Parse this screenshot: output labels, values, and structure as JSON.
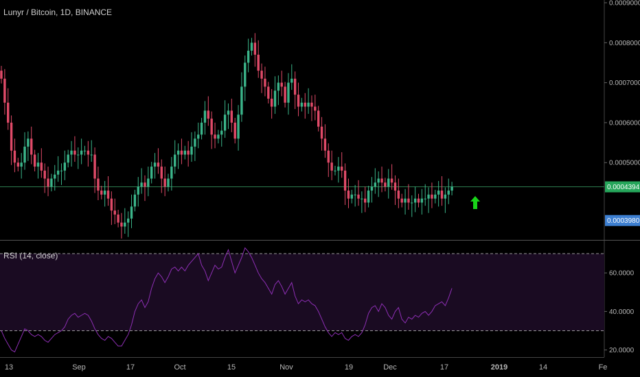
{
  "header": {
    "title": "Lunyr / Bitcoin, 1D, BINANCE"
  },
  "rsi_panel": {
    "title": "RSI (14, close)"
  },
  "colors": {
    "up": "#3bb58a",
    "down": "#e04a68",
    "price_line": "#2e7d4f",
    "last_price_bg": "#26a65b",
    "secondary_price_bg": "#3d7fd1",
    "arrow": "#19d419",
    "rsi_line": "#8e2fb5",
    "rsi_band": "#1a0b22"
  },
  "chart_data": [
    {
      "type": "candlestick",
      "title": "Lunyr / Bitcoin, 1D, BINANCE",
      "price_axis": {
        "ylim": [
          0.00031,
          0.0009
        ],
        "ticks": [
          "0.0005000",
          "0.0006000",
          "0.0007000",
          "0.0008000",
          "0.0009000"
        ]
      },
      "markers": [
        {
          "label": "0.0004394",
          "value": 0.0004394,
          "style": "current"
        },
        {
          "label": "0.0003980",
          "value": 0.000398,
          "style": "secondary"
        }
      ],
      "horizontal_line": 0.0004394,
      "annotation": "up-arrow-icon",
      "closes": [
        0.00071,
        0.00065,
        0.0006,
        0.00053,
        0.0005,
        0.00049,
        0.0005,
        0.00054,
        0.00056,
        0.00052,
        0.00049,
        0.0005,
        0.00048,
        0.00046,
        0.00044,
        0.00046,
        0.00047,
        0.00048,
        0.00048,
        0.0005,
        0.00052,
        0.00053,
        0.00052,
        0.00052,
        0.00053,
        0.00053,
        0.00052,
        0.00052,
        0.00046,
        0.00043,
        0.00042,
        0.00043,
        0.00041,
        0.00038,
        0.00037,
        0.00035,
        0.00034,
        0.00035,
        0.00036,
        0.00039,
        0.00042,
        0.00044,
        0.00045,
        0.00044,
        0.00046,
        0.00049,
        0.0005,
        0.00049,
        0.00046,
        0.00044,
        0.00046,
        0.00049,
        0.00052,
        0.00053,
        0.00052,
        0.00053,
        0.00052,
        0.00054,
        0.00056,
        0.00057,
        0.0006,
        0.00063,
        0.00061,
        0.00057,
        0.00056,
        0.00057,
        0.00058,
        0.00062,
        0.00063,
        0.0006,
        0.00056,
        0.00062,
        0.00069,
        0.00075,
        0.00078,
        0.0008,
        0.00077,
        0.00073,
        0.00071,
        0.00069,
        0.00066,
        0.00064,
        0.00068,
        0.0007,
        0.00069,
        0.00065,
        0.0007,
        0.00071,
        0.00067,
        0.00064,
        0.00065,
        0.00064,
        0.00065,
        0.00064,
        0.00063,
        0.00059,
        0.00056,
        0.00053,
        0.0005,
        0.00048,
        0.00048,
        0.00049,
        0.00048,
        0.00043,
        0.00041,
        0.00042,
        0.00042,
        0.00041,
        0.00041,
        0.0004,
        0.00043,
        0.00044,
        0.00045,
        0.00046,
        0.00045,
        0.00044,
        0.00046,
        0.00045,
        0.00043,
        0.00041,
        0.0004,
        0.00041,
        0.0004,
        0.0004,
        0.00041,
        0.0004,
        0.00041,
        0.00041,
        0.00042,
        0.00041,
        0.00042,
        0.00043,
        0.00041,
        0.00042,
        0.00043,
        0.00044
      ]
    },
    {
      "type": "line",
      "title": "RSI (14, close)",
      "ylim": [
        17,
        75
      ],
      "ticks": [
        "20.0000",
        "40.0000",
        "60.0000"
      ],
      "bands": [
        30,
        70
      ],
      "values": [
        30,
        26,
        23,
        20,
        19,
        23,
        27,
        31,
        30,
        28,
        27,
        28,
        27,
        25,
        24,
        26,
        28,
        29,
        30,
        32,
        36,
        38,
        39,
        37,
        38,
        39,
        38,
        35,
        31,
        28,
        26,
        25,
        27,
        26,
        24,
        22,
        22,
        25,
        28,
        33,
        40,
        44,
        46,
        42,
        45,
        52,
        57,
        60,
        58,
        55,
        58,
        62,
        63,
        61,
        63,
        61,
        64,
        66,
        68,
        70,
        64,
        61,
        56,
        60,
        64,
        62,
        63,
        68,
        72,
        66,
        60,
        64,
        68,
        73,
        71,
        68,
        64,
        60,
        57,
        55,
        52,
        49,
        54,
        56,
        53,
        49,
        52,
        55,
        48,
        44,
        46,
        45,
        46,
        44,
        43,
        40,
        36,
        32,
        29,
        27,
        29,
        28,
        29,
        26,
        25,
        27,
        28,
        27,
        29,
        33,
        39,
        42,
        43,
        40,
        44,
        42,
        38,
        36,
        40,
        42,
        36,
        34,
        37,
        36,
        38,
        37,
        39,
        40,
        38,
        40,
        43,
        44,
        45,
        43,
        47,
        52
      ]
    }
  ],
  "x_axis": {
    "labels": [
      "13",
      "Sep",
      "17",
      "Oct",
      "15",
      "Nov",
      "19",
      "Dec",
      "17",
      "2019",
      "14",
      "Fe"
    ]
  }
}
